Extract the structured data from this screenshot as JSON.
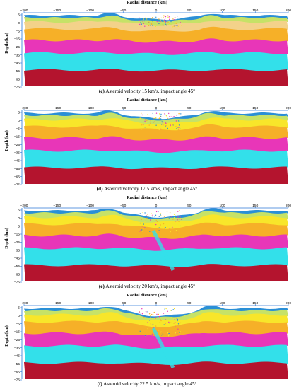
{
  "x_axis_title": "Radial distance (km)",
  "y_axis_title": "Depth (km)",
  "x_ticks": [
    "−200",
    "−150",
    "−100",
    "−50",
    "0",
    "50",
    "100",
    "150",
    "200"
  ],
  "y_ticks": [
    "5",
    "0",
    "−5",
    "−15",
    "−25",
    "−35",
    "−45",
    "−55",
    "−65",
    "−75"
  ],
  "layer_colors": {
    "water": "#2a8fd6",
    "top": "#c6e267",
    "mixed": "#e6d35a",
    "sand": "#f3d28a",
    "yellow": "#f8e62a",
    "orange": "#f6b028",
    "magenta": "#e836b8",
    "cyan": "#33e0ea",
    "red": "#b4142e"
  },
  "panels": [
    {
      "letter": "(c)",
      "caption": " Asteroid velocity 15 km/s, impact angle 45°"
    },
    {
      "letter": "(d)",
      "caption": " Asteroid velocity 17.5 km/s, impact angle 45°"
    },
    {
      "letter": "(e)",
      "caption": " Asteroid velocity 20 km/s, impact angle 45°"
    },
    {
      "letter": "(f)",
      "caption": " Asteroid velocity 22.5 km/s, impact angle 45°"
    }
  ]
}
